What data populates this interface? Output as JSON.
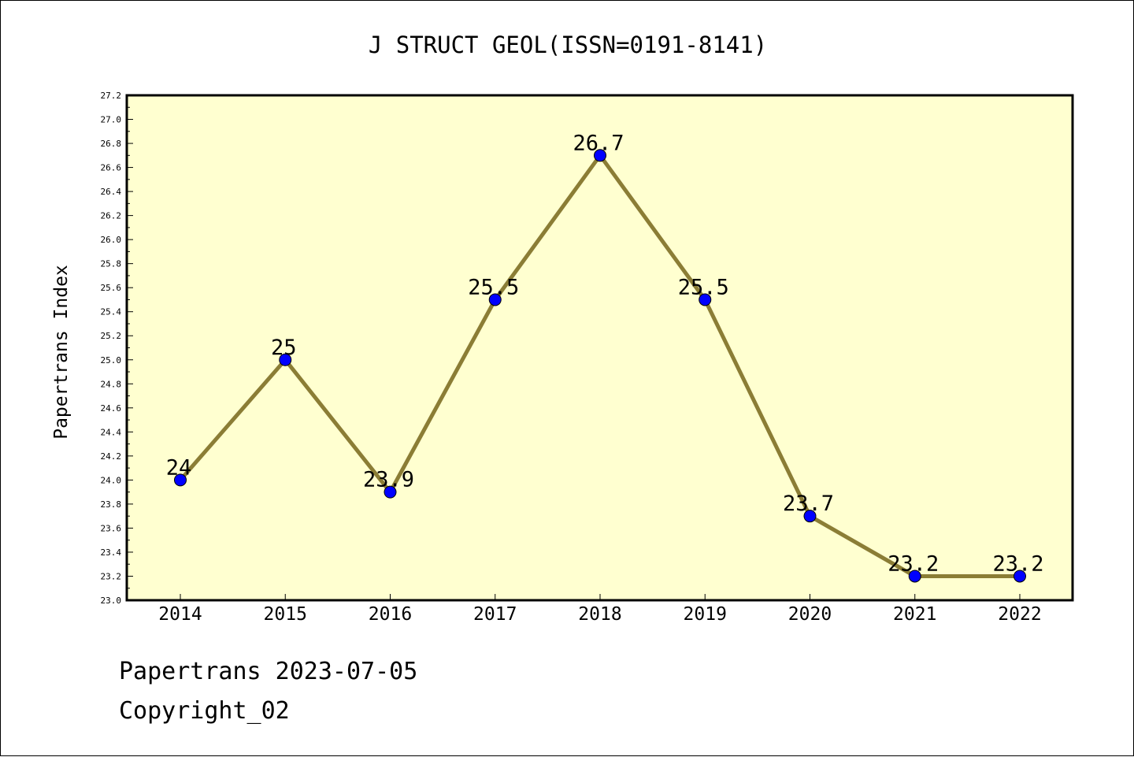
{
  "chart_data": {
    "type": "line",
    "title": "J STRUCT GEOL(ISSN=0191-8141)",
    "xlabel": "",
    "ylabel": "Papertrans Index",
    "categories": [
      "2014",
      "2015",
      "2016",
      "2017",
      "2018",
      "2019",
      "2020",
      "2021",
      "2022"
    ],
    "values": [
      24,
      25,
      23.9,
      25.5,
      26.7,
      25.5,
      23.7,
      23.2,
      23.2
    ],
    "data_labels": [
      "24",
      "25",
      "23.9",
      "25.5",
      "26.7",
      "25.5",
      "23.7",
      "23.2",
      "23.2"
    ],
    "ylim": [
      23.0,
      27.2
    ],
    "y_ticks": [
      "23.0",
      "23.2",
      "23.4",
      "23.6",
      "23.8",
      "24.0",
      "24.2",
      "24.4",
      "24.6",
      "24.8",
      "25.0",
      "25.2",
      "25.4",
      "25.6",
      "25.8",
      "26.0",
      "26.2",
      "26.4",
      "26.6",
      "26.8",
      "27.0",
      "27.2"
    ],
    "grid": false,
    "legend": "none",
    "colors": {
      "plot_background": "#ffffd0",
      "line": "#8b7d35",
      "marker": "#0000ff"
    }
  },
  "footer": {
    "line1": "Papertrans 2023-07-05",
    "line2": "Copyright_02"
  }
}
